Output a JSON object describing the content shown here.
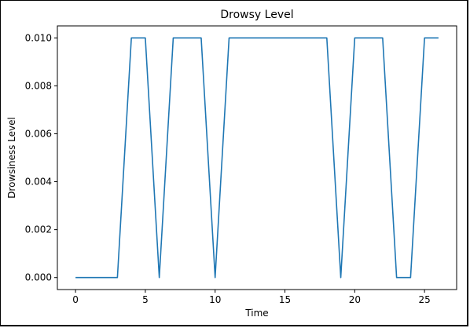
{
  "chart_data": {
    "type": "line",
    "title": "Drowsy Level",
    "xlabel": "Time",
    "ylabel": "Drowsiness Level",
    "xlim": [
      -1.3,
      27.3
    ],
    "ylim": [
      -0.0005,
      0.0105
    ],
    "xticks": [
      0,
      5,
      10,
      15,
      20,
      25
    ],
    "yticks": [
      0.0,
      0.002,
      0.004,
      0.006,
      0.008,
      0.01
    ],
    "xtick_labels": [
      "0",
      "5",
      "10",
      "15",
      "20",
      "25"
    ],
    "ytick_labels": [
      "0.000",
      "0.002",
      "0.004",
      "0.006",
      "0.008",
      "0.010"
    ],
    "grid": false,
    "series": [
      {
        "color": "#1f77b4",
        "x": [
          0,
          1,
          2,
          3,
          4,
          5,
          6,
          7,
          8,
          9,
          10,
          11,
          12,
          13,
          14,
          15,
          16,
          17,
          18,
          19,
          20,
          21,
          22,
          23,
          24,
          25,
          26
        ],
        "y": [
          0,
          0,
          0,
          0,
          0.01,
          0.01,
          0,
          0.01,
          0.01,
          0.01,
          0,
          0.01,
          0.01,
          0.01,
          0.01,
          0.01,
          0.01,
          0.01,
          0.01,
          0,
          0.01,
          0.01,
          0.01,
          0,
          0,
          0.01,
          0.01
        ]
      }
    ]
  }
}
